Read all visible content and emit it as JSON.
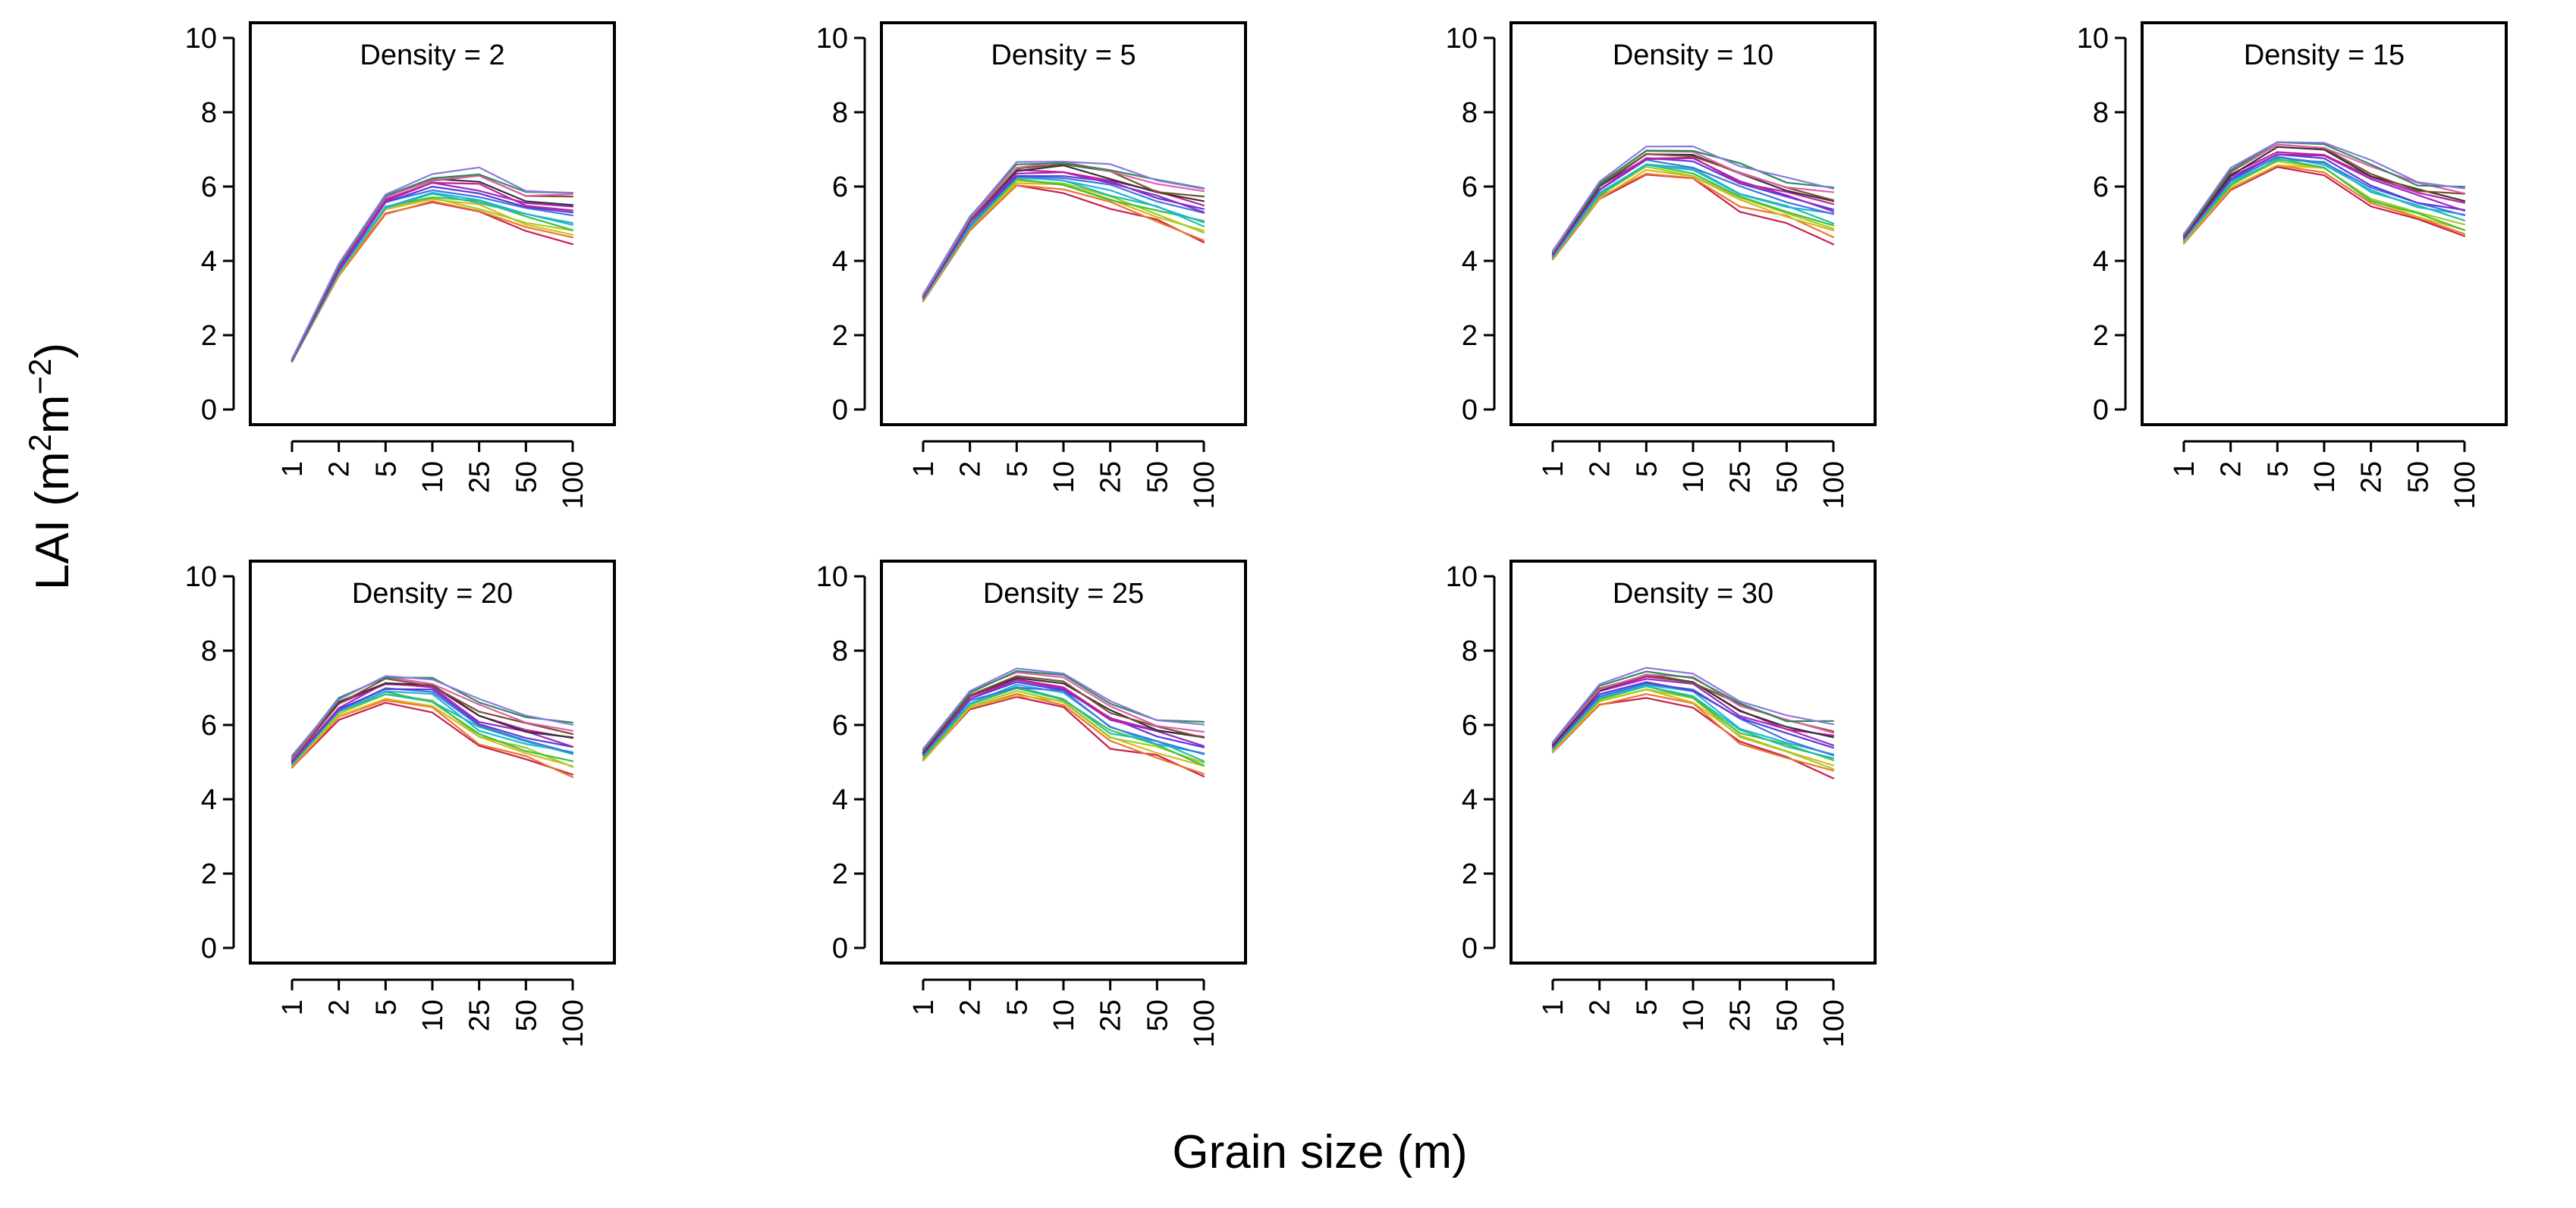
{
  "chart_data": {
    "type": "line",
    "ylabel_text": "LAI (m",
    "ylabel_sup_a": "2",
    "ylabel_mid": "m",
    "ylabel_sup_b": "−2",
    "ylabel_close": ")",
    "xlabel": "Grain size (m)",
    "categories": [
      "1",
      "2",
      "5",
      "10",
      "25",
      "50",
      "100"
    ],
    "ylim": [
      0,
      10
    ],
    "yticks": [
      "0",
      "2",
      "4",
      "6",
      "8",
      "10"
    ],
    "series_colors": [
      "#cc1f4a",
      "#e8772c",
      "#d9b81f",
      "#a3cc1f",
      "#3fbf3f",
      "#22bfa3",
      "#1fb5d9",
      "#3b78e0",
      "#5b3bd9",
      "#9b27c2",
      "#c21f9e",
      "#333333",
      "#7a5230",
      "#e05fb0",
      "#2e8b57",
      "#8a7ae0"
    ],
    "panels": [
      {
        "title": "Density = 2",
        "center": [
          1.32,
          3.75,
          5.55,
          5.95,
          5.85,
          5.4,
          5.2
        ],
        "spread": [
          0.05,
          0.2,
          0.35,
          0.5,
          0.75,
          0.7,
          0.9
        ]
      },
      {
        "title": "Density = 5",
        "center": [
          3.0,
          5.0,
          6.3,
          6.3,
          6.0,
          5.6,
          5.3
        ],
        "spread": [
          0.12,
          0.25,
          0.4,
          0.55,
          0.75,
          0.7,
          0.9
        ]
      },
      {
        "title": "Density = 10",
        "center": [
          4.15,
          5.9,
          6.7,
          6.6,
          6.0,
          5.6,
          5.3
        ],
        "spread": [
          0.15,
          0.3,
          0.45,
          0.55,
          0.75,
          0.7,
          0.9
        ]
      },
      {
        "title": "Density = 15",
        "center": [
          4.6,
          6.2,
          6.85,
          6.75,
          6.0,
          5.6,
          5.3
        ],
        "spread": [
          0.18,
          0.35,
          0.45,
          0.55,
          0.75,
          0.7,
          0.9
        ]
      },
      {
        "title": "Density = 20",
        "center": [
          5.0,
          6.45,
          7.0,
          6.85,
          6.05,
          5.65,
          5.35
        ],
        "spread": [
          0.2,
          0.35,
          0.45,
          0.55,
          0.75,
          0.7,
          0.9
        ]
      },
      {
        "title": "Density = 25",
        "center": [
          5.2,
          6.65,
          7.1,
          6.9,
          6.05,
          5.65,
          5.35
        ],
        "spread": [
          0.2,
          0.35,
          0.45,
          0.55,
          0.75,
          0.7,
          0.9
        ]
      },
      {
        "title": "Density = 30",
        "center": [
          5.4,
          6.8,
          7.15,
          6.95,
          6.1,
          5.7,
          5.35
        ],
        "spread": [
          0.2,
          0.35,
          0.45,
          0.55,
          0.75,
          0.7,
          0.9
        ]
      }
    ],
    "series_count": 16,
    "note": "Each panel shows many thin colored lines (one per series); values estimated from gridlines."
  }
}
